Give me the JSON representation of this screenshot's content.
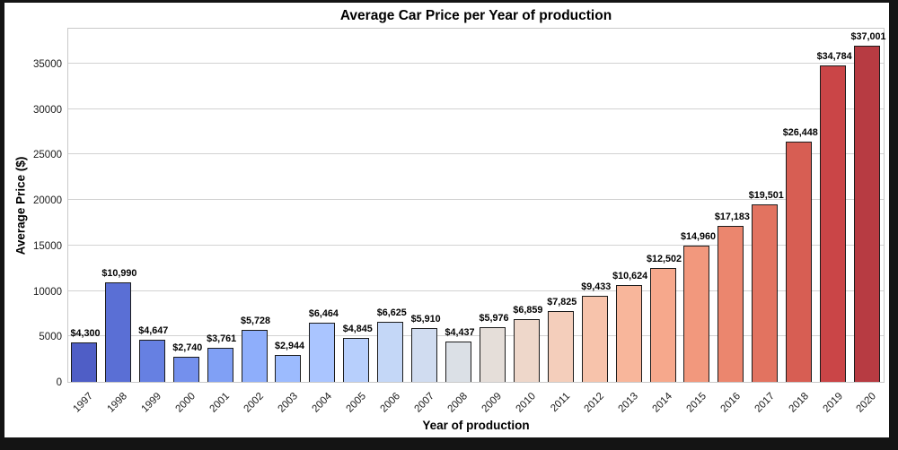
{
  "title": "Average Car Price per Year of production",
  "x_axis_label": "Year of production",
  "y_axis_label": "Average Price ($)",
  "y_tick_labels": [
    "0",
    "5000",
    "10000",
    "15000",
    "20000",
    "25000",
    "30000",
    "35000"
  ],
  "colors": {
    "figure_border": "#141414",
    "background": "#ffffff",
    "grid": "#d2d2d2",
    "spine": "#c9c9c9",
    "bar_edge": "#1c1c1c",
    "text": "#000000"
  },
  "chart_data": {
    "type": "bar",
    "title": "Average Car Price per Year of production",
    "xlabel": "Year of production",
    "ylabel": "Average Price ($)",
    "categories": [
      "1997",
      "1998",
      "1999",
      "2000",
      "2001",
      "2002",
      "2003",
      "2004",
      "2005",
      "2006",
      "2007",
      "2008",
      "2009",
      "2010",
      "2011",
      "2012",
      "2013",
      "2014",
      "2015",
      "2016",
      "2017",
      "2018",
      "2019",
      "2020"
    ],
    "values": [
      4300,
      10990,
      4647,
      2740,
      3761,
      5728,
      2944,
      6464,
      4845,
      6625,
      5910,
      4437,
      5976,
      6859,
      7825,
      9433,
      10624,
      12502,
      14960,
      17183,
      19501,
      26448,
      34784,
      37001
    ],
    "value_labels": [
      "$4,300",
      "$10,990",
      "$4,647",
      "$2,740",
      "$3,761",
      "$5,728",
      "$2,944",
      "$6,464",
      "$4,845",
      "$6,625",
      "$5,910",
      "$4,437",
      "$5,976",
      "$6,859",
      "$7,825",
      "$9,433",
      "$10,624",
      "$12,502",
      "$14,960",
      "$17,183",
      "$19,501",
      "$26,448",
      "$34,784",
      "$37,001"
    ],
    "bar_colors": [
      "#4F5EC6",
      "#5A6FD5",
      "#6680E2",
      "#7490ED",
      "#80A0F5",
      "#8EAEFB",
      "#9CBBFE",
      "#AAC5FF",
      "#B7CFFC",
      "#C4D7F7",
      "#D0DCF0",
      "#DBE0E6",
      "#E5DED9",
      "#EED7CA",
      "#F4CEBB",
      "#F7C3AB",
      "#F8B69B",
      "#F6A88C",
      "#F2987D",
      "#EB866E",
      "#E27360",
      "#D75E53",
      "#CA4547",
      "#B73B42"
    ],
    "colormap": "coolwarm",
    "y_ticks": [
      0,
      5000,
      10000,
      15000,
      20000,
      25000,
      30000,
      35000
    ],
    "ylim": [
      0,
      39050
    ],
    "grid": "horizontal",
    "legend": "none",
    "bar_labels_position": "above-bar"
  }
}
